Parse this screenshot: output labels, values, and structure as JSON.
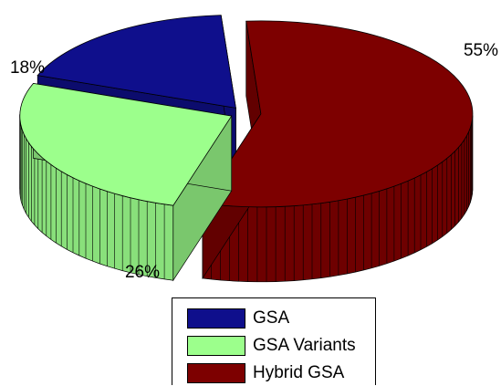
{
  "chart_data": {
    "type": "pie",
    "style": "3d-exploded",
    "slices": [
      {
        "label": "GSA",
        "value": 18,
        "display": "18%",
        "color": "#0f0f8c"
      },
      {
        "label": "GSA Variants",
        "value": 26,
        "display": "26%",
        "color": "#9cff8c"
      },
      {
        "label": "Hybrid GSA",
        "value": 55,
        "display": "55%",
        "color": "#7d0000"
      }
    ],
    "legend_position": "bottom"
  }
}
